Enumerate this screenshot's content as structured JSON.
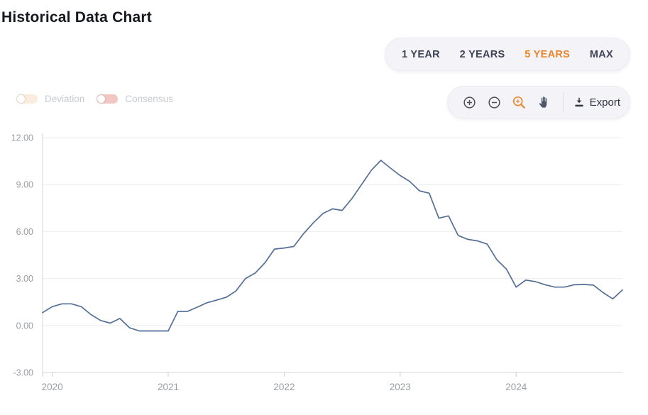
{
  "page": {
    "title": "Historical Data Chart"
  },
  "range_selector": {
    "options": [
      {
        "label": "1 YEAR",
        "active": false
      },
      {
        "label": "2 YEARS",
        "active": false
      },
      {
        "label": "5 YEARS",
        "active": true
      },
      {
        "label": "MAX",
        "active": false
      }
    ],
    "active_color": "#e8862d",
    "text_color": "#3d4354"
  },
  "legend": [
    {
      "label": "Deviation",
      "toggle_color": "#faeddd",
      "state": "off"
    },
    {
      "label": "Consensus",
      "toggle_color": "#f2c7c2",
      "state": "off"
    }
  ],
  "toolbar": {
    "tools": [
      {
        "name": "zoom-in",
        "active": false
      },
      {
        "name": "zoom-out",
        "active": false
      },
      {
        "name": "zoom-selection",
        "active": true
      },
      {
        "name": "pan",
        "active": false
      }
    ],
    "export_label": "Export",
    "active_color": "#e8862d"
  },
  "chart_data": {
    "type": "line",
    "title": "Historical Data Chart",
    "range": "5 YEARS",
    "frequency": "monthly",
    "x_tick_labels": [
      "2020",
      "2021",
      "2022",
      "2023",
      "2024"
    ],
    "x_tick_month_indices": [
      1,
      13,
      25,
      37,
      49
    ],
    "values": [
      0.82,
      1.2,
      1.38,
      1.38,
      1.2,
      0.7,
      0.32,
      0.15,
      0.45,
      -0.15,
      -0.35,
      -0.35,
      -0.35,
      -0.35,
      0.9,
      0.9,
      1.17,
      1.45,
      1.62,
      1.8,
      2.2,
      3.0,
      3.35,
      4.0,
      4.88,
      4.95,
      5.05,
      5.86,
      6.55,
      7.15,
      7.45,
      7.35,
      8.1,
      9.0,
      9.9,
      10.55,
      10.05,
      9.58,
      9.2,
      8.6,
      8.45,
      6.85,
      7.0,
      5.75,
      5.5,
      5.4,
      5.2,
      4.2,
      3.6,
      2.45,
      2.9,
      2.8,
      2.6,
      2.45,
      2.45,
      2.6,
      2.62,
      2.58,
      2.1,
      1.7,
      2.27
    ],
    "y_ticks": [
      {
        "value": 12,
        "label": "12.00"
      },
      {
        "value": 9,
        "label": "9.00"
      },
      {
        "value": 6,
        "label": "6.00"
      },
      {
        "value": 3,
        "label": "3.00"
      },
      {
        "value": 0,
        "label": "0.00"
      },
      {
        "value": -3,
        "label": "-3.00"
      }
    ],
    "ylim": [
      -3,
      12
    ],
    "grid": "horizontal",
    "legend_position": "none",
    "line_color": "#546f96",
    "grid_color": "#ededed",
    "axis_color": "#d7d7dc",
    "tick_color": "#cfcfd4",
    "label_color": "#9a9ea3"
  }
}
